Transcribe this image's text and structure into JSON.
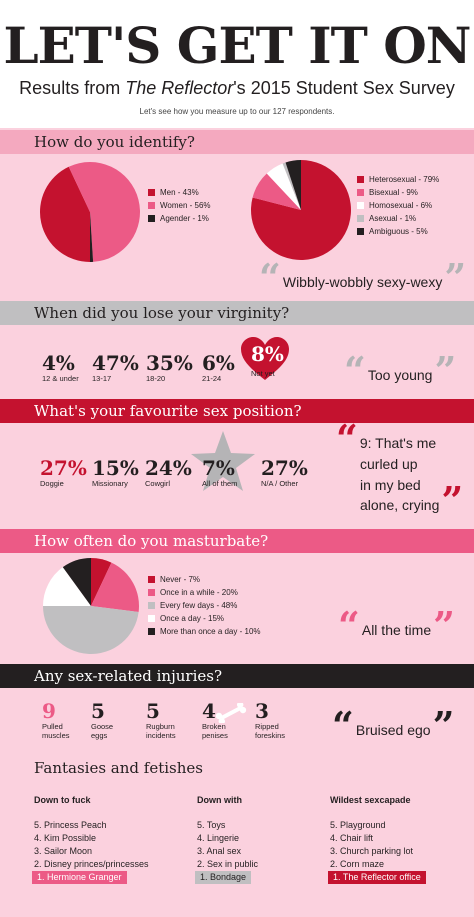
{
  "header": {
    "title": "LET'S GET IT ON",
    "subtitle_pre": "Results from ",
    "subtitle_em": "The Reflector",
    "subtitle_post": "'s 2015 Student Sex Survey",
    "tagline": "Let's see how you measure up to our 127 respondents."
  },
  "colors": {
    "pink_bg": "#fbd1de",
    "red": "#c4122f",
    "pink": "#ec5a86",
    "gray": "#c0bfc1",
    "black": "#231f20",
    "white": "#ffffff"
  },
  "identify": {
    "heading": "How do you identify?",
    "gender": [
      {
        "label": "Men - 43%",
        "value": 43,
        "color": "#c4122f"
      },
      {
        "label": "Women - 56%",
        "value": 56,
        "color": "#ec5a86"
      },
      {
        "label": "Agender - 1%",
        "value": 1,
        "color": "#231f20"
      }
    ],
    "orientation": [
      {
        "label": "Heterosexual - 79%",
        "value": 79,
        "color": "#c4122f"
      },
      {
        "label": "Bisexual - 9%",
        "value": 9,
        "color": "#ec5a86"
      },
      {
        "label": "Homosexual - 6%",
        "value": 6,
        "color": "#ffffff"
      },
      {
        "label": "Asexual - 1%",
        "value": 1,
        "color": "#c0bfc1"
      },
      {
        "label": "Ambiguous - 5%",
        "value": 5,
        "color": "#231f20"
      }
    ],
    "quote": "Wibbly-wobbly sexy-wexy"
  },
  "virginity": {
    "heading": "When did you lose your virginity?",
    "stats": [
      {
        "n": "4%",
        "l": "12 & under"
      },
      {
        "n": "47%",
        "l": "13-17"
      },
      {
        "n": "35%",
        "l": "18-20"
      },
      {
        "n": "6%",
        "l": "21-24"
      },
      {
        "n": "8%",
        "l": "Not yet"
      }
    ],
    "quote": "Too young"
  },
  "position": {
    "heading": "What's your favourite sex position?",
    "stats": [
      {
        "n": "27%",
        "l": "Doggie"
      },
      {
        "n": "15%",
        "l": "Missionary"
      },
      {
        "n": "24%",
        "l": "Cowgirl"
      },
      {
        "n": "7%",
        "l": "All of them"
      },
      {
        "n": "27%",
        "l": "N/A / Other"
      }
    ],
    "quote": [
      "9: That's me",
      "curled up",
      "in my bed",
      "alone, crying"
    ]
  },
  "masturbate": {
    "heading": "How often do you masturbate?",
    "slices": [
      {
        "label": "Never - 7%",
        "value": 7,
        "color": "#c4122f"
      },
      {
        "label": "Once in a while - 20%",
        "value": 20,
        "color": "#ec5a86"
      },
      {
        "label": "Every few days - 48%",
        "value": 48,
        "color": "#c0bfc1"
      },
      {
        "label": "Once a day - 15%",
        "value": 15,
        "color": "#ffffff"
      },
      {
        "label": "More than once a day - 10%",
        "value": 10,
        "color": "#231f20"
      }
    ],
    "quote": "All the time"
  },
  "injuries": {
    "heading": "Any sex-related injuries?",
    "stats": [
      {
        "n": "9",
        "l": "Pulled\nmuscles"
      },
      {
        "n": "5",
        "l": "Goose\neggs"
      },
      {
        "n": "5",
        "l": "Rugburn\nincidents"
      },
      {
        "n": "4",
        "l": "Broken\npenises"
      },
      {
        "n": "3",
        "l": "Ripped\nforeskins"
      }
    ],
    "quote": "Bruised ego"
  },
  "fantasies": {
    "heading": "Fantasies and fetishes",
    "columns": [
      {
        "title": "Down to fuck",
        "items": [
          "5. Princess Peach",
          "4. Kim Possible",
          "3. Sailor Moon",
          "2. Disney princes/princesses"
        ],
        "top": "1. Hermione Granger",
        "top_color": "#ec5a86"
      },
      {
        "title": "Down with",
        "items": [
          "5. Toys",
          "4. Lingerie",
          "3. Anal sex",
          "2. Sex in public"
        ],
        "top": "1. Bondage",
        "top_color": "#c0bfc1"
      },
      {
        "title": "Wildest sexcapade",
        "items": [
          "5. Playground",
          "4. Chair lift",
          "3. Church parking lot",
          "2. Corn maze"
        ],
        "top": "1. The Reflector office",
        "top_color": "#c4122f"
      }
    ]
  }
}
